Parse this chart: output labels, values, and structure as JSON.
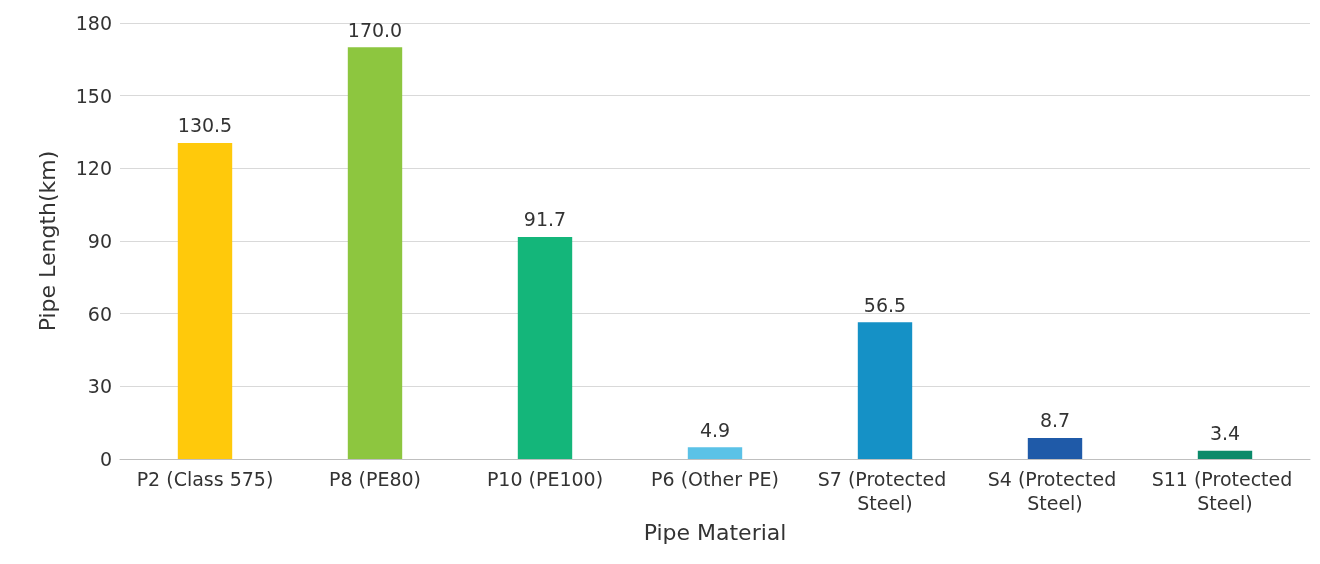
{
  "chart_data": {
    "type": "bar",
    "xlabel": "Pipe Material",
    "ylabel": "Pipe Length(km)",
    "categories": [
      "P2 (Class 575)",
      "P8 (PE80)",
      "P10 (PE100)",
      "P6 (Other PE)",
      "S7 (Protected Steel)",
      "S4 (Protected Steel)",
      "S11 (Protected Steel)"
    ],
    "values": [
      130.5,
      170.0,
      91.7,
      4.9,
      56.5,
      8.7,
      3.4
    ],
    "colors": [
      "#ffc90b",
      "#8dc63f",
      "#14b67a",
      "#5bc2e7",
      "#1591c6",
      "#1f5aa8",
      "#0b8a6a"
    ],
    "value_labels": [
      "130.5",
      "170.0",
      "91.7",
      "4.9",
      "56.5",
      "8.7",
      "3.4"
    ],
    "ylim": [
      0,
      180
    ],
    "yticks": [
      0,
      30,
      60,
      90,
      120,
      150,
      180
    ],
    "grid": "y"
  }
}
